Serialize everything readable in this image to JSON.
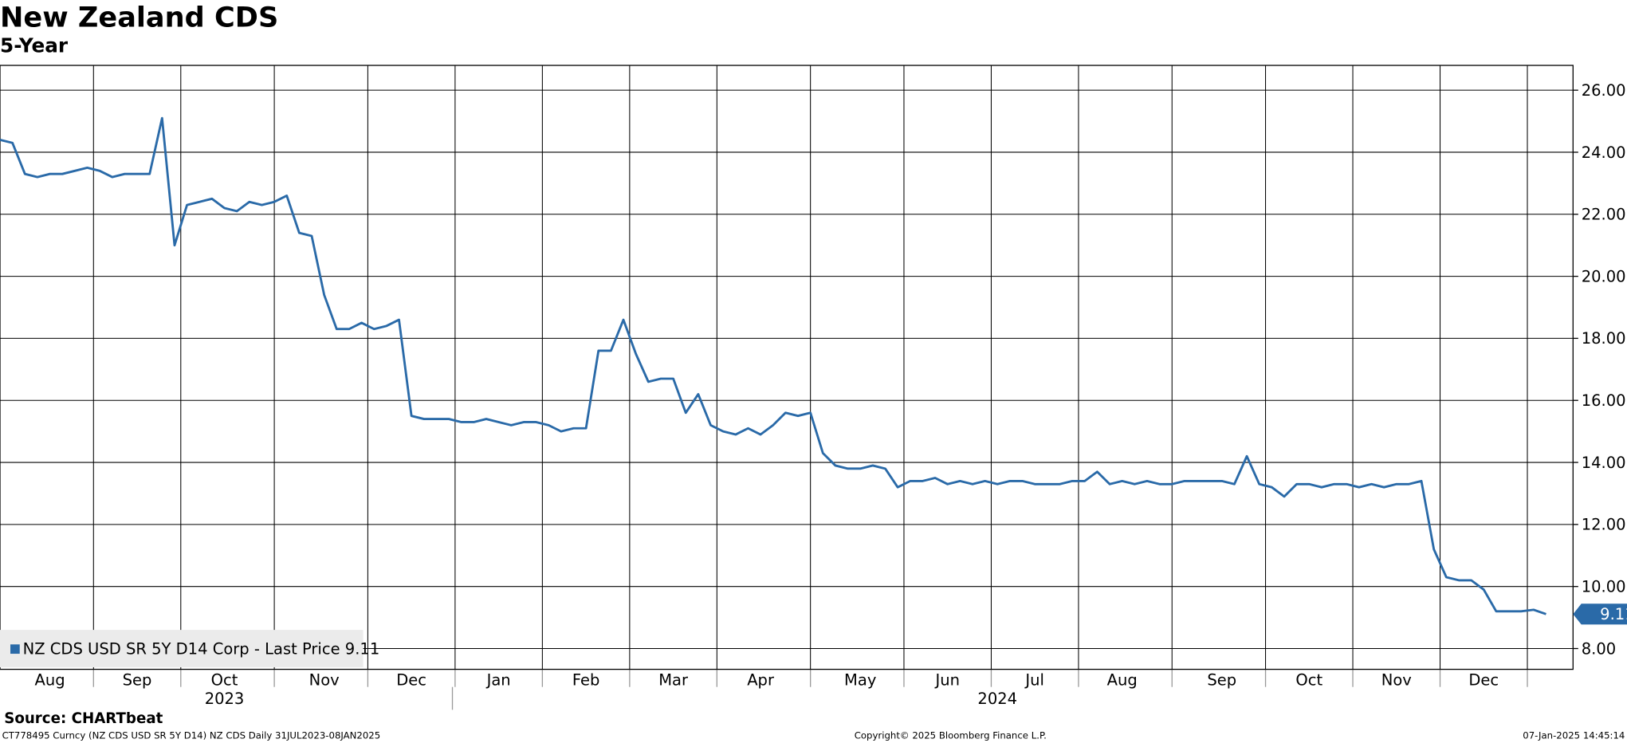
{
  "chart_data": {
    "type": "line",
    "title": "New Zealand CDS",
    "subtitle": "5-Year",
    "source": "Source: CHARTbeat",
    "footer": {
      "left": "CT778495 Curncy (NZ CDS USD SR 5Y D14) NZ CDS  Daily 31JUL2023-08JAN2025",
      "center": "Copyright© 2025 Bloomberg Finance L.P.",
      "right": "07-Jan-2025 14:45:14"
    },
    "categories": [
      null,
      null,
      null,
      null,
      "Aug",
      null,
      null,
      null,
      null,
      null,
      null,
      "Sep",
      null,
      null,
      null,
      null,
      null,
      null,
      "Oct",
      null,
      null,
      null,
      null,
      null,
      null,
      null,
      "Nov",
      null,
      null,
      null,
      null,
      null,
      null,
      "Dec",
      null,
      null,
      null,
      null,
      null,
      null,
      "Jan",
      null,
      null,
      null,
      null,
      null,
      null,
      "Feb",
      null,
      null,
      null,
      null,
      null,
      null,
      "Mar",
      null,
      null,
      null,
      null,
      null,
      null,
      "Apr",
      null,
      null,
      null,
      null,
      null,
      null,
      null,
      "May",
      null,
      null,
      null,
      null,
      null,
      null,
      "Jun",
      null,
      null,
      null,
      null,
      null,
      null,
      "Jul",
      null,
      null,
      null,
      null,
      null,
      null,
      "Aug",
      null,
      null,
      null,
      null,
      null,
      null,
      null,
      "Sep",
      null,
      null,
      null,
      null,
      null,
      null,
      "Oct",
      null,
      null,
      null,
      null,
      null,
      null,
      "Nov",
      null,
      null,
      null,
      null,
      null,
      null,
      "Dec",
      null,
      null,
      null,
      null,
      null
    ],
    "year_categories": [
      null,
      null,
      null,
      null,
      null,
      null,
      null,
      null,
      null,
      null,
      null,
      null,
      null,
      null,
      null,
      null,
      null,
      null,
      "2023",
      null,
      null,
      null,
      null,
      null,
      null,
      null,
      null,
      null,
      null,
      null,
      null,
      null,
      null,
      null,
      null,
      null,
      null,
      null,
      null,
      null,
      null,
      null,
      null,
      null,
      null,
      null,
      null,
      null,
      null,
      null,
      null,
      null,
      null,
      null,
      null,
      null,
      null,
      null,
      null,
      null,
      null,
      null,
      null,
      null,
      null,
      null,
      null,
      null,
      null,
      null,
      null,
      null,
      null,
      null,
      null,
      null,
      null,
      null,
      null,
      null,
      "2024",
      null,
      null,
      null,
      null,
      null,
      null,
      null,
      null,
      null,
      null,
      null,
      null,
      null,
      null,
      null,
      null,
      null,
      null,
      null,
      null,
      null,
      null,
      null,
      null,
      null,
      null,
      null,
      null,
      null,
      null,
      null,
      null,
      null,
      null,
      null,
      null,
      null,
      null,
      null,
      null,
      null,
      null,
      null,
      null
    ],
    "series": [
      {
        "name": "NZ CDS USD SR 5Y D14 Corp - Last Price 9.11",
        "color": "#2a6aa8",
        "values": [
          24.4,
          24.3,
          23.3,
          23.2,
          23.3,
          23.3,
          23.4,
          23.5,
          23.4,
          23.2,
          23.3,
          23.3,
          23.3,
          25.1,
          21.0,
          22.3,
          22.4,
          22.5,
          22.2,
          22.1,
          22.4,
          22.3,
          22.4,
          22.6,
          21.4,
          21.3,
          19.4,
          18.3,
          18.3,
          18.5,
          18.3,
          18.4,
          18.6,
          15.5,
          15.4,
          15.4,
          15.4,
          15.3,
          15.3,
          15.4,
          15.3,
          15.2,
          15.3,
          15.3,
          15.2,
          15.0,
          15.1,
          15.1,
          17.6,
          17.6,
          18.6,
          17.5,
          16.6,
          16.7,
          16.7,
          15.6,
          16.2,
          15.2,
          15.0,
          14.9,
          15.1,
          14.9,
          15.2,
          15.6,
          15.5,
          15.6,
          14.3,
          13.9,
          13.8,
          13.8,
          13.9,
          13.8,
          13.2,
          13.4,
          13.4,
          13.5,
          13.3,
          13.4,
          13.3,
          13.4,
          13.3,
          13.4,
          13.4,
          13.3,
          13.3,
          13.3,
          13.4,
          13.4,
          13.7,
          13.3,
          13.4,
          13.3,
          13.4,
          13.3,
          13.3,
          13.4,
          13.4,
          13.4,
          13.4,
          13.3,
          14.2,
          13.3,
          13.2,
          12.9,
          13.3,
          13.3,
          13.2,
          13.3,
          13.3,
          13.2,
          13.3,
          13.2,
          13.3,
          13.3,
          13.4,
          11.2,
          10.3,
          10.2,
          10.2,
          9.9,
          9.2,
          9.2,
          9.2,
          9.25,
          9.11
        ]
      }
    ],
    "ylim": [
      7.33,
      26.8
    ],
    "yticks": [
      {
        "value": 8,
        "label": "8.00"
      },
      {
        "value": 10,
        "label": "10.00"
      },
      {
        "value": 12,
        "label": "12.00"
      },
      {
        "value": 14,
        "label": "14.00"
      },
      {
        "value": 16,
        "label": "16.00"
      },
      {
        "value": 18,
        "label": "18.00"
      },
      {
        "value": 20,
        "label": "20.00"
      },
      {
        "value": 22,
        "label": "22.00"
      },
      {
        "value": 24,
        "label": "24.00"
      },
      {
        "value": 26,
        "label": "26.00"
      }
    ],
    "grid": true
  }
}
